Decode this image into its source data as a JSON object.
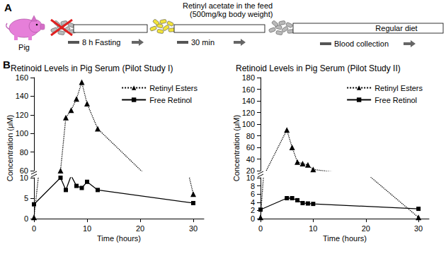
{
  "panel_a": {
    "label": "A",
    "animal": "Pig",
    "feed_note": [
      "Retinyl acetate in the feed",
      "(500mg/kg body weight)"
    ],
    "steps": [
      "8 h Fasting",
      "30 min",
      "Blood collection"
    ],
    "diet": "Regular diet"
  },
  "panel_b": {
    "label": "B"
  },
  "chart_data": [
    {
      "type": "line",
      "title": "Retinoid Levels in Pig Serum (Pilot Study I)",
      "x_label": "Time (hours)",
      "y_label": "Concentration (μM)",
      "x": [
        0,
        5,
        6,
        7,
        8,
        9,
        10,
        12,
        30
      ],
      "xlim": [
        0,
        32
      ],
      "xticks": [
        0,
        10,
        20,
        30
      ],
      "ylim": [
        [
          0,
          10
        ],
        [
          60,
          160
        ]
      ],
      "yticks": [
        [
          0,
          5,
          10
        ],
        [
          60,
          80,
          100,
          120,
          140,
          160
        ]
      ],
      "grid": false,
      "legend": "upper right",
      "series": [
        {
          "name": "Retinyl Esters",
          "color": "#000000",
          "marker": "triangle",
          "line_style": "dotted",
          "values": [
            0.3,
            60,
            117,
            125,
            137,
            155,
            132,
            105,
            6
          ]
        },
        {
          "name": "Free Retinol",
          "color": "#000000",
          "marker": "square",
          "line_style": "solid",
          "values": [
            3.5,
            10,
            7,
            10.5,
            8,
            7.5,
            9,
            7,
            3.8
          ]
        }
      ]
    },
    {
      "type": "line",
      "title": "Retinoid Levels in Pig Serum (Pilot Study II)",
      "x_label": "Time (hours)",
      "y_label": "Concentration (μM)",
      "x": [
        0,
        5,
        6,
        7,
        8,
        9,
        10,
        30
      ],
      "xlim": [
        0,
        32
      ],
      "xticks": [
        0,
        10,
        20,
        30
      ],
      "ylim": [
        [
          0,
          10
        ],
        [
          20,
          180
        ]
      ],
      "yticks": [
        [
          0,
          2,
          4,
          6,
          8,
          10
        ],
        [
          20,
          40,
          60,
          80,
          100,
          120,
          140,
          160,
          180
        ]
      ],
      "grid": false,
      "legend": "upper right",
      "series": [
        {
          "name": "Retinyl Esters",
          "color": "#000000",
          "marker": "triangle",
          "line_style": "dotted",
          "values": [
            0.3,
            90,
            60,
            35,
            32,
            30,
            22,
            0.3
          ]
        },
        {
          "name": "Free Retinol",
          "color": "#000000",
          "marker": "square",
          "line_style": "solid",
          "values": [
            2.2,
            5,
            5,
            4.5,
            3.8,
            3.7,
            3.6,
            2.4
          ]
        }
      ]
    }
  ]
}
